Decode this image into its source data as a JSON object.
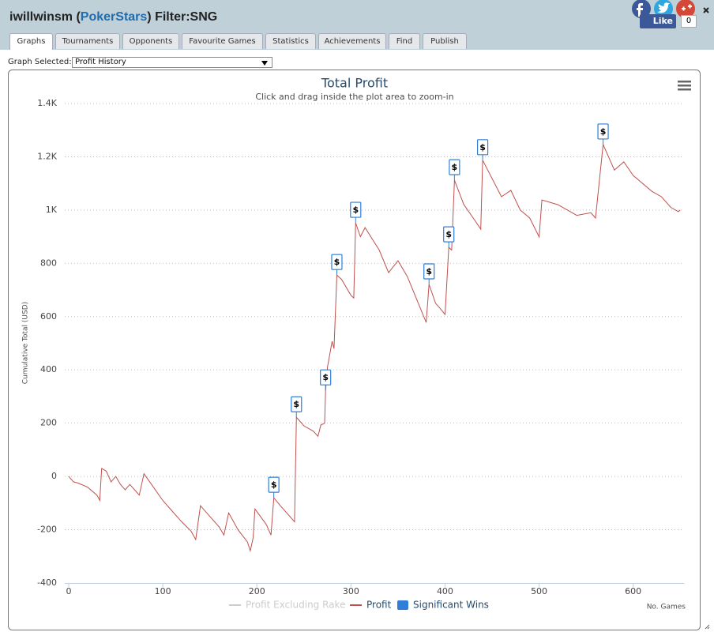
{
  "header": {
    "title_parts": [
      "iwillwinsm (",
      "PokerStars",
      ") Filter:SNG"
    ],
    "like": "Like",
    "like_count": "0"
  },
  "tabs": [
    "Graphs",
    "Tournaments",
    "Opponents",
    "Favourite Games",
    "Statistics",
    "Achievements",
    "Find",
    "Publish"
  ],
  "graph_selector": {
    "label": "Graph Selected:",
    "value": "Profit History"
  },
  "chart_data": {
    "type": "line",
    "title": "Total Profit",
    "subtitle": "Click and drag inside the plot area to zoom-in",
    "y_label": "Cumulative Total (USD)",
    "x_label": "No. Games",
    "xlim": [
      0,
      654
    ],
    "xticks": [
      0,
      100,
      200,
      300,
      400,
      500,
      600
    ],
    "ylim": [
      -400,
      1400
    ],
    "yticks": [
      -400,
      -200,
      0,
      200,
      400,
      600,
      800,
      {
        "value": 1000,
        "label": "1K"
      },
      {
        "value": 1200,
        "label": "1.2K"
      },
      {
        "value": 1400,
        "label": "1.4K"
      }
    ],
    "grid": true,
    "x": [
      0,
      5,
      10,
      20,
      30,
      33,
      35,
      40,
      45,
      50,
      55,
      60,
      65,
      70,
      75,
      80,
      90,
      100,
      110,
      120,
      130,
      135,
      140,
      150,
      160,
      165,
      170,
      180,
      190,
      193,
      196,
      198,
      210,
      215,
      218,
      225,
      240,
      242,
      250,
      260,
      265,
      268,
      272,
      273,
      275,
      280,
      282,
      285,
      290,
      300,
      303,
      305,
      310,
      315,
      330,
      340,
      350,
      360,
      380,
      383,
      390,
      395,
      400,
      404,
      407,
      410,
      420,
      430,
      438,
      440,
      460,
      470,
      480,
      490,
      500,
      503,
      520,
      540,
      555,
      560,
      568,
      580,
      590,
      600,
      620,
      630,
      640,
      648,
      650
    ],
    "series": [
      {
        "name": "Profit Excluding Rake",
        "color": "#cccccc",
        "visible": false
      },
      {
        "name": "Profit",
        "color": "#c0504d",
        "values": [
          0,
          -20,
          -25,
          -40,
          -70,
          -90,
          30,
          20,
          -20,
          0,
          -30,
          -50,
          -30,
          -50,
          -70,
          10,
          -40,
          -90,
          -130,
          -170,
          -205,
          -237,
          -110,
          -150,
          -190,
          -220,
          -137,
          -200,
          -246,
          -279,
          -230,
          -122,
          -180,
          -220,
          -80,
          -110,
          -170,
          222,
          190,
          170,
          151,
          193,
          200,
          323,
          410,
          507,
          480,
          756,
          740,
          680,
          670,
          952,
          900,
          934,
          850,
          765,
          810,
          750,
          578,
          721,
          650,
          630,
          608,
          860,
          850,
          1112,
          1020,
          970,
          928,
          1187,
          1050,
          1074,
          1000,
          970,
          899,
          1038,
          1020,
          980,
          990,
          970,
          1246,
          1150,
          1181,
          1130,
          1070,
          1050,
          1010,
          994,
          1000
        ]
      },
      {
        "name": "Significant Wins",
        "color": "#2f7ed8",
        "marker_symbol": "$",
        "x": [
          218,
          242,
          273,
          285,
          305,
          383,
          404,
          410,
          440,
          568
        ],
        "values": [
          -80,
          222,
          323,
          756,
          952,
          721,
          860,
          1112,
          1187,
          1246
        ]
      }
    ]
  }
}
